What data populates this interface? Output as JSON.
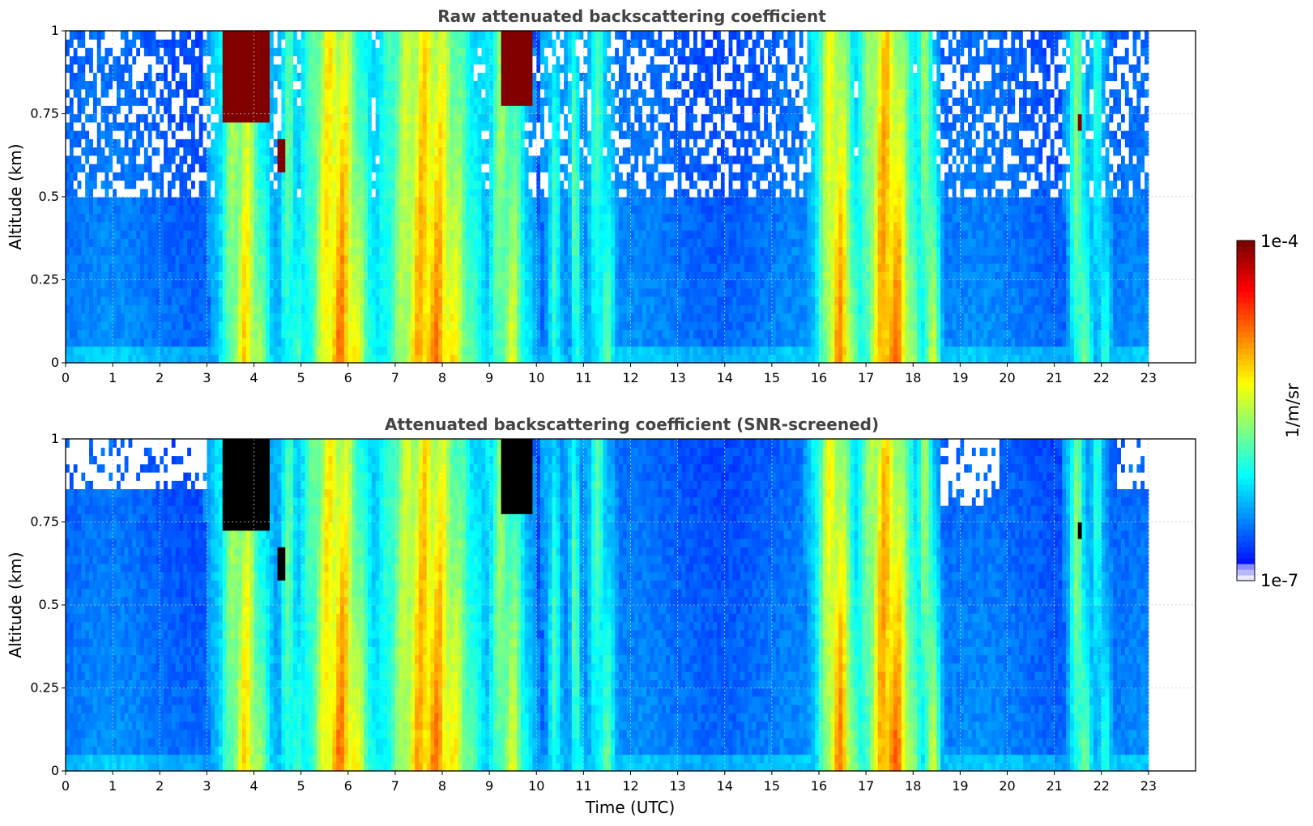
{
  "chart_data": [
    {
      "type": "heatmap",
      "title": "Raw attenuated backscattering coefficient",
      "xlabel": "",
      "ylabel": "Altitude (km)",
      "xlim": [
        0,
        24
      ],
      "ylim": [
        0,
        1
      ],
      "x_ticks": [
        "0",
        "1",
        "2",
        "3",
        "4",
        "5",
        "6",
        "7",
        "8",
        "9",
        "10",
        "11",
        "12",
        "13",
        "14",
        "15",
        "16",
        "17",
        "18",
        "19",
        "20",
        "21",
        "22",
        "23"
      ],
      "y_ticks": [
        "0",
        "0.25",
        "0.5",
        "0.75",
        "1"
      ],
      "data_extent_hours": [
        0,
        23
      ],
      "grid": true,
      "colormap": "jet",
      "noise_speckle_above_km": 0.5,
      "plumes": [
        {
          "start": 3.3,
          "end": 4.4,
          "peak": 0.62
        },
        {
          "start": 4.6,
          "end": 5.1,
          "peak": 0.45
        },
        {
          "start": 5.1,
          "end": 6.6,
          "peak": 0.72
        },
        {
          "start": 6.7,
          "end": 8.9,
          "peak": 0.72
        },
        {
          "start": 9.0,
          "end": 9.9,
          "peak": 0.55
        },
        {
          "start": 10.3,
          "end": 10.6,
          "peak": 0.4
        },
        {
          "start": 10.8,
          "end": 11.0,
          "peak": 0.45
        },
        {
          "start": 11.2,
          "end": 11.7,
          "peak": 0.45
        },
        {
          "start": 16.0,
          "end": 16.9,
          "peak": 0.7
        },
        {
          "start": 16.9,
          "end": 18.2,
          "peak": 0.75
        },
        {
          "start": 18.2,
          "end": 18.6,
          "peak": 0.55
        },
        {
          "start": 21.4,
          "end": 21.8,
          "peak": 0.5
        },
        {
          "start": 21.9,
          "end": 22.2,
          "peak": 0.4
        }
      ],
      "saturated_regions": [
        {
          "time": [
            3.3,
            4.35
          ],
          "altitude_km": [
            0.72,
            1.0
          ]
        },
        {
          "time": [
            9.25,
            9.9
          ],
          "altitude_km": [
            0.78,
            1.0
          ]
        },
        {
          "time": [
            4.5,
            4.65
          ],
          "altitude_km": [
            0.58,
            0.68
          ]
        },
        {
          "time": [
            21.5,
            21.6
          ],
          "altitude_km": [
            0.7,
            0.76
          ]
        }
      ]
    },
    {
      "type": "heatmap",
      "title": "Attenuated backscattering coefficient (SNR-screened)",
      "xlabel": "Time (UTC)",
      "ylabel": "Altitude (km)",
      "xlim": [
        0,
        24
      ],
      "ylim": [
        0,
        1
      ],
      "x_ticks": [
        "0",
        "1",
        "2",
        "3",
        "4",
        "5",
        "6",
        "7",
        "8",
        "9",
        "10",
        "11",
        "12",
        "13",
        "14",
        "15",
        "16",
        "17",
        "18",
        "19",
        "20",
        "21",
        "22",
        "23"
      ],
      "y_ticks": [
        "0",
        "0.25",
        "0.5",
        "0.75",
        "1"
      ],
      "data_extent_hours": [
        0,
        23
      ],
      "grid": true,
      "colormap": "jet",
      "screened_regions": [
        {
          "time": [
            0.0,
            3.0
          ],
          "altitude_km": [
            0.85,
            1.0
          ]
        },
        {
          "time": [
            18.6,
            19.8
          ],
          "altitude_km": [
            0.8,
            1.0
          ]
        },
        {
          "time": [
            22.3,
            23.0
          ],
          "altitude_km": [
            0.85,
            1.0
          ]
        }
      ],
      "saturated_color": "#000000"
    }
  ],
  "colorbar": {
    "label": "1/m/sr",
    "max_label": "1e-4",
    "min_label": "1e-7",
    "scale": "log"
  },
  "colors": {
    "background_level": "#1a3cff",
    "saturated_top": "#800000",
    "screened_saturated": "#000000",
    "title": "#444444"
  }
}
